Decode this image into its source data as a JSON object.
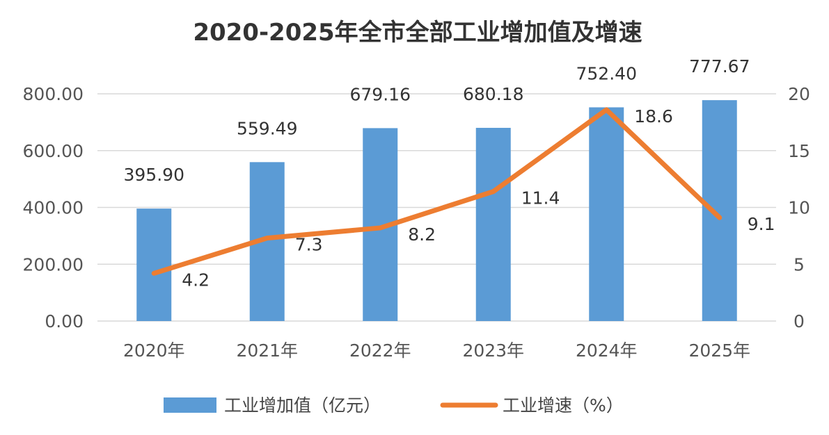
{
  "chart_data": {
    "type": "bar",
    "title": "2020-2025年全市全部工业增加值及增速",
    "categories": [
      "2020年",
      "2021年",
      "2022年",
      "2023年",
      "2024年",
      "2025年"
    ],
    "series": [
      {
        "name": "工业增加值（亿元）",
        "type": "bar",
        "axis": "left",
        "color": "#5B9BD5",
        "values": [
          395.9,
          559.49,
          679.16,
          680.18,
          752.4,
          777.67
        ],
        "labels": [
          "395.90",
          "559.49",
          "679.16",
          "680.18",
          "752.40",
          "777.67"
        ]
      },
      {
        "name": "工业增速（%）",
        "type": "line",
        "axis": "right",
        "color": "#ED7D31",
        "values": [
          4.2,
          7.3,
          8.2,
          11.4,
          18.6,
          9.1
        ],
        "labels": [
          "4.2",
          "7.3",
          "8.2",
          "11.4",
          "18.6",
          "9.1"
        ]
      }
    ],
    "y_left": {
      "ylim": [
        0,
        800
      ],
      "ticks": [
        "0.00",
        "200.00",
        "400.00",
        "600.00",
        "800.00"
      ]
    },
    "y_right": {
      "ylim": [
        0,
        20
      ],
      "ticks": [
        "0",
        "5",
        "10",
        "15",
        "20"
      ]
    },
    "grid": true,
    "legend": "bottom"
  }
}
